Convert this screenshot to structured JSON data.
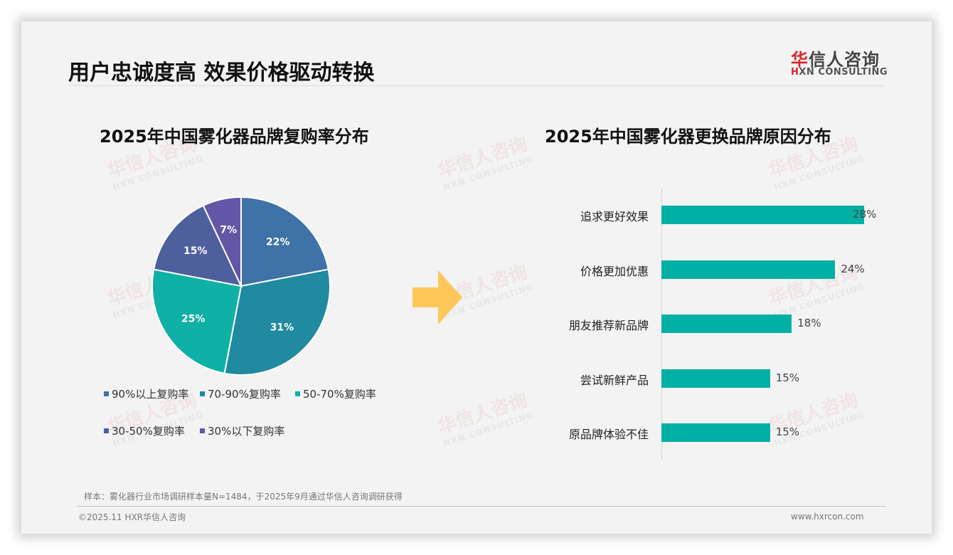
{
  "header": {
    "title": "用户忠诚度高 效果价格驱动转换",
    "logo_cn_first": "华",
    "logo_cn_rest": "信人咨询",
    "logo_en_first": "H",
    "logo_en_rest": "XN CONSULTING"
  },
  "watermark": {
    "cn": "华信人咨询",
    "en": "HXN CONSULTING"
  },
  "left_chart": {
    "title": "2025年中国雾化器品牌复购率分布"
  },
  "right_chart": {
    "title": "2025年中国雾化器更换品牌原因分布"
  },
  "arrow": {
    "color": "#ffc75a",
    "icon": "arrow-right-icon"
  },
  "chart_data": [
    {
      "type": "pie",
      "title": "2025年中国雾化器品牌复购率分布",
      "categories": [
        "90%以上复购率",
        "70-90%复购率",
        "50-70%复购率",
        "30-50%复购率",
        "30%以下复购率"
      ],
      "values": [
        22,
        31,
        25,
        15,
        7
      ],
      "labels": [
        "22%",
        "31%",
        "25%",
        "15%",
        "7%"
      ],
      "colors": [
        "#3f72a6",
        "#1f8aa0",
        "#0fb0a5",
        "#4e5f9e",
        "#6456a6"
      ],
      "legend_position": "bottom",
      "start_angle": "12 o'clock, clockwise"
    },
    {
      "type": "bar",
      "orientation": "horizontal",
      "title": "2025年中国雾化器更换品牌原因分布",
      "categories": [
        "追求更好效果",
        "价格更加优惠",
        "朋友推荐新品牌",
        "尝试新鲜产品",
        "原品牌体验不佳"
      ],
      "values": [
        28,
        24,
        18,
        15,
        15
      ],
      "labels": [
        "28%",
        "24%",
        "18%",
        "15%",
        "15%"
      ],
      "color": "#00b0a4",
      "xlabel": "",
      "ylabel": "",
      "grid": false
    }
  ],
  "footer": {
    "sample": "样本：雾化器行业市场调研样本量N=1484，于2025年9月通过华信人咨询调研获得",
    "copyright": "©2025.11 HXR华信人咨询",
    "website": "www.hxrcon.com"
  }
}
